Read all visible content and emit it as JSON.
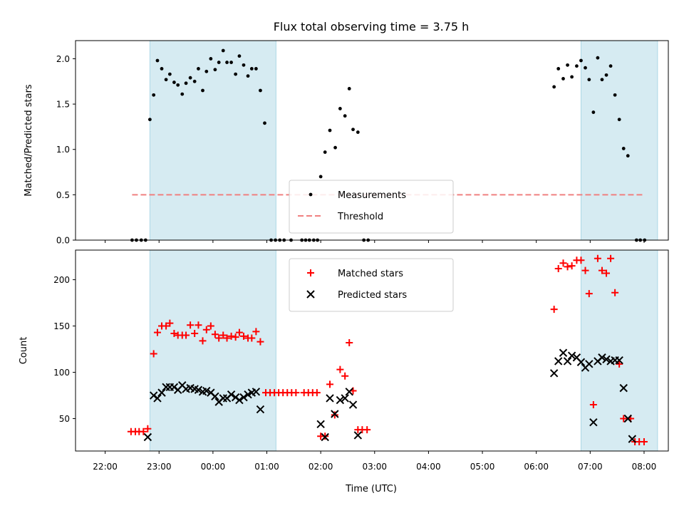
{
  "chart_data": {
    "type": "scatter",
    "title": "Flux total observing time = 3.75 h",
    "xlabel": "Time (UTC)",
    "x_unit": "hours since 22:00 UTC",
    "xlim": [
      -0.55,
      10.45
    ],
    "xticks": [
      {
        "x": 0,
        "label": "22:00"
      },
      {
        "x": 1,
        "label": "23:00"
      },
      {
        "x": 2,
        "label": "00:00"
      },
      {
        "x": 3,
        "label": "01:00"
      },
      {
        "x": 4,
        "label": "02:00"
      },
      {
        "x": 5,
        "label": "03:00"
      },
      {
        "x": 6,
        "label": "04:00"
      },
      {
        "x": 7,
        "label": "05:00"
      },
      {
        "x": 8,
        "label": "06:00"
      },
      {
        "x": 9,
        "label": "07:00"
      },
      {
        "x": 10,
        "label": "08:00"
      }
    ],
    "shaded_intervals": [
      [
        0.83,
        3.17
      ],
      [
        8.83,
        10.25
      ]
    ],
    "panels": [
      {
        "id": "ratio",
        "ylabel": "Matched/Predicted stars",
        "ylim": [
          0,
          2.2
        ],
        "yticks": [
          {
            "y": 0,
            "label": "0.0"
          },
          {
            "y": 0.5,
            "label": "0.5"
          },
          {
            "y": 1.0,
            "label": "1.0"
          },
          {
            "y": 1.5,
            "label": "1.5"
          },
          {
            "y": 2.0,
            "label": "2.0"
          }
        ],
        "legend": {
          "location": "lower-center",
          "entries": [
            "Measurements",
            "Threshold"
          ]
        },
        "threshold": {
          "name": "Threshold",
          "y": 0.5,
          "x_range": [
            0.5,
            10.0
          ],
          "color": "#f08080"
        },
        "series": [
          {
            "name": "Measurements",
            "marker": "dot",
            "color": "#000000",
            "points": [
              [
                0.5,
                0
              ],
              [
                0.58,
                0
              ],
              [
                0.67,
                0
              ],
              [
                0.75,
                0
              ],
              [
                0.83,
                1.33
              ],
              [
                0.9,
                1.6
              ],
              [
                0.97,
                1.98
              ],
              [
                1.05,
                1.89
              ],
              [
                1.13,
                1.77
              ],
              [
                1.2,
                1.83
              ],
              [
                1.28,
                1.74
              ],
              [
                1.35,
                1.71
              ],
              [
                1.43,
                1.61
              ],
              [
                1.5,
                1.73
              ],
              [
                1.58,
                1.79
              ],
              [
                1.66,
                1.75
              ],
              [
                1.73,
                1.89
              ],
              [
                1.81,
                1.65
              ],
              [
                1.88,
                1.86
              ],
              [
                1.96,
                2.0
              ],
              [
                2.04,
                1.88
              ],
              [
                2.11,
                1.96
              ],
              [
                2.19,
                2.09
              ],
              [
                2.26,
                1.96
              ],
              [
                2.34,
                1.96
              ],
              [
                2.42,
                1.83
              ],
              [
                2.49,
                2.03
              ],
              [
                2.57,
                1.93
              ],
              [
                2.65,
                1.81
              ],
              [
                2.72,
                1.89
              ],
              [
                2.8,
                1.89
              ],
              [
                2.88,
                1.65
              ],
              [
                2.96,
                1.29
              ],
              [
                3.08,
                0
              ],
              [
                3.16,
                0
              ],
              [
                3.24,
                0
              ],
              [
                3.32,
                0
              ],
              [
                3.45,
                0
              ],
              [
                3.65,
                0
              ],
              [
                3.72,
                0
              ],
              [
                3.79,
                0
              ],
              [
                3.87,
                0
              ],
              [
                3.94,
                0
              ],
              [
                4.0,
                0.7
              ],
              [
                4.08,
                0.97
              ],
              [
                4.17,
                1.21
              ],
              [
                4.27,
                1.02
              ],
              [
                4.36,
                1.45
              ],
              [
                4.45,
                1.37
              ],
              [
                4.53,
                1.67
              ],
              [
                4.6,
                1.22
              ],
              [
                4.69,
                1.19
              ],
              [
                4.8,
                0
              ],
              [
                4.88,
                0
              ],
              [
                8.33,
                1.69
              ],
              [
                8.41,
                1.89
              ],
              [
                8.5,
                1.78
              ],
              [
                8.58,
                1.93
              ],
              [
                8.66,
                1.8
              ],
              [
                8.75,
                1.92
              ],
              [
                8.83,
                1.98
              ],
              [
                8.91,
                1.9
              ],
              [
                8.98,
                1.77
              ],
              [
                9.06,
                1.41
              ],
              [
                9.14,
                2.01
              ],
              [
                9.22,
                1.77
              ],
              [
                9.3,
                1.82
              ],
              [
                9.38,
                1.92
              ],
              [
                9.46,
                1.6
              ],
              [
                9.54,
                1.33
              ],
              [
                9.62,
                1.01
              ],
              [
                9.7,
                0.93
              ],
              [
                9.86,
                0
              ],
              [
                9.93,
                0
              ],
              [
                10.01,
                0
              ]
            ]
          }
        ]
      },
      {
        "id": "counts",
        "ylabel": "Count",
        "ylim": [
          15,
          232
        ],
        "yticks": [
          {
            "y": 50,
            "label": "50"
          },
          {
            "y": 100,
            "label": "100"
          },
          {
            "y": 150,
            "label": "150"
          },
          {
            "y": 200,
            "label": "200"
          }
        ],
        "legend": {
          "location": "upper-center",
          "entries": [
            "Matched stars",
            "Predicted stars"
          ]
        },
        "series": [
          {
            "name": "Matched stars",
            "marker": "plus",
            "color": "#ff0000",
            "points": [
              [
                0.48,
                36
              ],
              [
                0.56,
                36
              ],
              [
                0.63,
                36
              ],
              [
                0.71,
                36
              ],
              [
                0.79,
                39
              ],
              [
                0.9,
                120
              ],
              [
                0.97,
                143
              ],
              [
                1.05,
                150
              ],
              [
                1.13,
                150
              ],
              [
                1.2,
                153
              ],
              [
                1.28,
                142
              ],
              [
                1.35,
                140
              ],
              [
                1.43,
                140
              ],
              [
                1.5,
                140
              ],
              [
                1.58,
                151
              ],
              [
                1.66,
                142
              ],
              [
                1.73,
                151
              ],
              [
                1.81,
                134
              ],
              [
                1.88,
                146
              ],
              [
                1.96,
                150
              ],
              [
                2.04,
                141
              ],
              [
                2.11,
                137
              ],
              [
                2.19,
                140
              ],
              [
                2.26,
                137
              ],
              [
                2.34,
                139
              ],
              [
                2.42,
                138
              ],
              [
                2.49,
                143
              ],
              [
                2.57,
                139
              ],
              [
                2.65,
                137
              ],
              [
                2.72,
                137
              ],
              [
                2.8,
                144
              ],
              [
                2.88,
                133
              ],
              [
                2.98,
                78
              ],
              [
                3.06,
                78
              ],
              [
                3.14,
                78
              ],
              [
                3.22,
                78
              ],
              [
                3.3,
                78
              ],
              [
                3.38,
                78
              ],
              [
                3.46,
                78
              ],
              [
                3.54,
                78
              ],
              [
                3.69,
                78
              ],
              [
                3.77,
                78
              ],
              [
                3.85,
                78
              ],
              [
                3.93,
                78
              ],
              [
                4.0,
                31
              ],
              [
                4.08,
                31
              ],
              [
                4.17,
                87
              ],
              [
                4.26,
                54
              ],
              [
                4.36,
                103
              ],
              [
                4.45,
                96
              ],
              [
                4.53,
                132
              ],
              [
                4.6,
                80
              ],
              [
                4.69,
                38
              ],
              [
                4.77,
                38
              ],
              [
                4.86,
                38
              ],
              [
                8.33,
                168
              ],
              [
                8.41,
                212
              ],
              [
                8.5,
                218
              ],
              [
                8.58,
                214
              ],
              [
                8.66,
                215
              ],
              [
                8.75,
                221
              ],
              [
                8.83,
                221
              ],
              [
                8.91,
                210
              ],
              [
                8.98,
                185
              ],
              [
                9.06,
                65
              ],
              [
                9.14,
                223
              ],
              [
                9.22,
                210
              ],
              [
                9.3,
                207
              ],
              [
                9.38,
                223
              ],
              [
                9.46,
                186
              ],
              [
                9.54,
                109
              ],
              [
                9.62,
                50
              ],
              [
                9.75,
                50
              ],
              [
                9.83,
                25
              ],
              [
                9.91,
                25
              ],
              [
                10.0,
                25
              ]
            ]
          },
          {
            "name": "Predicted stars",
            "marker": "x",
            "color": "#000000",
            "points": [
              [
                0.79,
                30
              ],
              [
                0.9,
                75
              ],
              [
                0.97,
                72
              ],
              [
                1.05,
                78
              ],
              [
                1.13,
                84
              ],
              [
                1.2,
                84
              ],
              [
                1.28,
                84
              ],
              [
                1.35,
                81
              ],
              [
                1.43,
                86
              ],
              [
                1.5,
                82
              ],
              [
                1.58,
                83
              ],
              [
                1.66,
                82
              ],
              [
                1.73,
                81
              ],
              [
                1.81,
                79
              ],
              [
                1.88,
                80
              ],
              [
                1.96,
                78
              ],
              [
                2.04,
                74
              ],
              [
                2.11,
                68
              ],
              [
                2.19,
                72
              ],
              [
                2.26,
                72
              ],
              [
                2.34,
                76
              ],
              [
                2.42,
                73
              ],
              [
                2.49,
                70
              ],
              [
                2.57,
                73
              ],
              [
                2.65,
                76
              ],
              [
                2.72,
                78
              ],
              [
                2.8,
                79
              ],
              [
                2.88,
                60
              ],
              [
                4.0,
                44
              ],
              [
                4.08,
                30
              ],
              [
                4.17,
                72
              ],
              [
                4.26,
                55
              ],
              [
                4.36,
                70
              ],
              [
                4.45,
                72
              ],
              [
                4.53,
                79
              ],
              [
                4.6,
                65
              ],
              [
                4.69,
                32
              ],
              [
                8.33,
                99
              ],
              [
                8.41,
                112
              ],
              [
                8.5,
                121
              ],
              [
                8.58,
                112
              ],
              [
                8.66,
                118
              ],
              [
                8.75,
                116
              ],
              [
                8.83,
                111
              ],
              [
                8.91,
                105
              ],
              [
                8.98,
                109
              ],
              [
                9.06,
                46
              ],
              [
                9.14,
                112
              ],
              [
                9.22,
                116
              ],
              [
                9.3,
                114
              ],
              [
                9.38,
                112
              ],
              [
                9.46,
                113
              ],
              [
                9.54,
                113
              ],
              [
                9.62,
                83
              ],
              [
                9.7,
                50
              ],
              [
                9.78,
                28
              ]
            ]
          }
        ]
      }
    ],
    "colors": {
      "shade": "#add8e6",
      "shade_opacity": 0.5
    }
  }
}
